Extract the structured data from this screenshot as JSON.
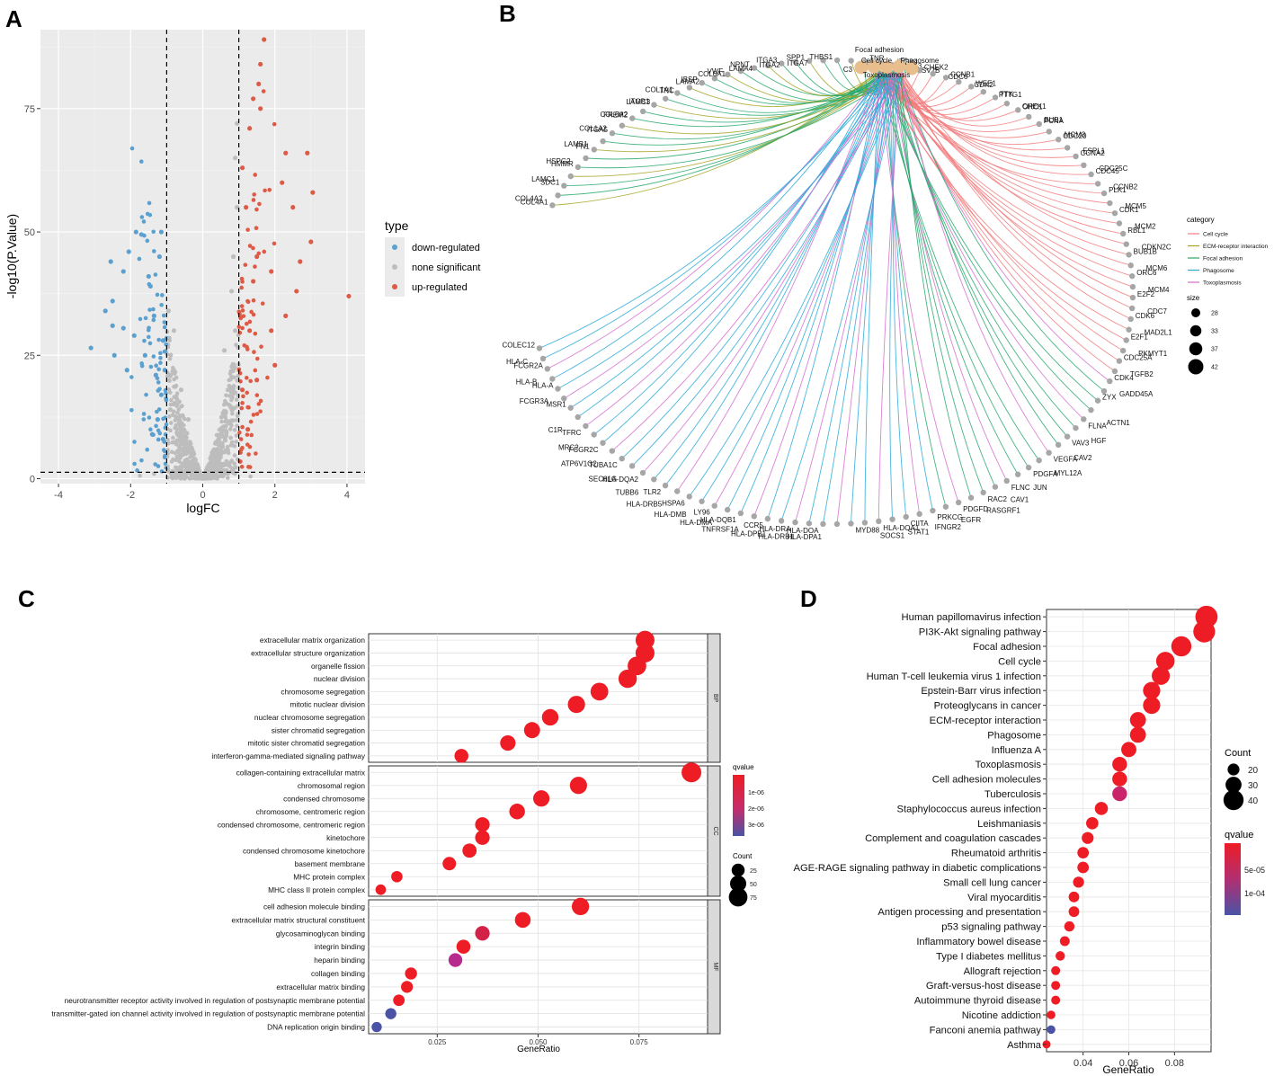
{
  "figure": {
    "panel_labels": [
      "A",
      "B",
      "C",
      "D"
    ],
    "colors": {
      "down": "#5aa0d0",
      "none": "#bdbdbd",
      "up": "#df5a45",
      "panel_bg": "#ebebeb",
      "grid": "#ffffff",
      "strip": "#d9d9d9",
      "qhigh": "#ee1c25",
      "qlow": "#4a53a5"
    }
  },
  "chart_data": [
    {
      "panel": "A",
      "type": "scatter",
      "title": "",
      "xlabel": "logFC",
      "ylabel": "-log10(P.Value)",
      "xlim": [
        -4.5,
        4.5
      ],
      "ylim": [
        -1,
        91
      ],
      "xticks": [
        -4,
        -2,
        0,
        2,
        4
      ],
      "yticks": [
        0,
        25,
        50,
        75
      ],
      "vlines": [
        -1,
        1
      ],
      "hline": 1.3,
      "legend": {
        "title": "type",
        "entries": [
          "down-regulated",
          "none significant",
          "up-regulated"
        ]
      },
      "series": [
        {
          "name": "down-regulated",
          "color": "#5aa0d0",
          "points": [
            [
              -3.1,
              26.5
            ],
            [
              -2.7,
              34
            ],
            [
              -2.55,
              44
            ],
            [
              -2.5,
              36
            ],
            [
              -2.5,
              31
            ],
            [
              -2.45,
              25
            ],
            [
              -2.2,
              42
            ],
            [
              -2.2,
              30.5
            ],
            [
              -2.1,
              22
            ],
            [
              -2.05,
              46
            ],
            [
              -1.85,
              50
            ],
            [
              -1.7,
              49.5
            ],
            [
              -1.5,
              41
            ],
            [
              -1.45,
              39
            ],
            [
              -1.2,
              45
            ],
            [
              -1.15,
              50
            ],
            [
              -1.1,
              28
            ],
            [
              -1.15,
              17
            ],
            [
              -1.3,
              21
            ],
            [
              -1.6,
              25
            ],
            [
              -1.9,
              29
            ],
            [
              -1.35,
              33
            ],
            [
              -1.25,
              12
            ],
            [
              -1.1,
              8
            ],
            [
              -1.4,
              9
            ],
            [
              -1.05,
              22
            ]
          ]
        },
        {
          "name": "none significant",
          "color": "#bdbdbd",
          "points": [
            [
              -0.9,
              14
            ],
            [
              -0.7,
              9
            ],
            [
              -0.5,
              6
            ],
            [
              -0.3,
              3
            ],
            [
              -0.1,
              1
            ],
            [
              0.1,
              1.5
            ],
            [
              0.3,
              4
            ],
            [
              0.5,
              9
            ],
            [
              0.7,
              18
            ],
            [
              0.9,
              30
            ],
            [
              0.95,
              55
            ],
            [
              0.85,
              45
            ],
            [
              0.6,
              26
            ],
            [
              0.95,
              72
            ],
            [
              0.9,
              65
            ],
            [
              0.8,
              38
            ],
            [
              -0.8,
              30
            ],
            [
              -0.95,
              34
            ],
            [
              -0.6,
              18
            ],
            [
              -0.4,
              12
            ]
          ]
        },
        {
          "name": "up-regulated",
          "color": "#df5a45",
          "points": [
            [
              1.7,
              89
            ],
            [
              1.6,
              84
            ],
            [
              1.55,
              80
            ],
            [
              1.4,
              77
            ],
            [
              1.6,
              75
            ],
            [
              1.3,
              71
            ],
            [
              2.3,
              66
            ],
            [
              2.9,
              66
            ],
            [
              3.05,
              58
            ],
            [
              2.5,
              55
            ],
            [
              3.0,
              48
            ],
            [
              2.2,
              60
            ],
            [
              2.7,
              44
            ],
            [
              4.05,
              37
            ],
            [
              1.9,
              42
            ],
            [
              2.6,
              38
            ],
            [
              2.3,
              33
            ],
            [
              1.9,
              30
            ],
            [
              2.0,
              23
            ],
            [
              1.4,
              40
            ],
            [
              1.2,
              55
            ],
            [
              1.1,
              63
            ],
            [
              1.5,
              45
            ],
            [
              1.3,
              30
            ],
            [
              1.1,
              18
            ],
            [
              1.5,
              20
            ],
            [
              1.25,
              10
            ]
          ]
        }
      ]
    },
    {
      "panel": "B",
      "type": "network",
      "title": "",
      "categories": [
        {
          "name": "Cell cycle",
          "color": "#f27b7c"
        },
        {
          "name": "ECM-receptor interaction",
          "color": "#a3a425"
        },
        {
          "name": "Focal adhesion",
          "color": "#26a86c"
        },
        {
          "name": "Phagosome",
          "color": "#28a9d8"
        },
        {
          "name": "Toxoplasmosis",
          "color": "#d56bcf"
        }
      ],
      "legend_title": "category",
      "size_title": "size",
      "size_legend": [
        28,
        33,
        37,
        42
      ],
      "term_nodes": [
        "Focal adhesion",
        "Cell cycle",
        "Phagosome",
        "Toxoplasmosis",
        "C3"
      ],
      "gene_labels": [
        "COL4A1",
        "COL4A2",
        "SDC1",
        "LAMC1",
        "HMMR",
        "HSPG2",
        "FN1",
        "LAMB1",
        "ITGA5",
        "COL1A2",
        "FREM2",
        "COL6A2",
        "ITGB1",
        "LAMC3",
        "COL1A1",
        "TNC",
        "IBSP",
        "LAMA2",
        "VWF",
        "COL6A1",
        "NPNT",
        "LAMA4",
        "ITGA3",
        "ITGA2",
        "SPP1",
        "ITGA7",
        "THBS1",
        "CD44",
        "TNR",
        "COL9A3",
        "ITGB4",
        "SV2B",
        "CHEK2",
        "CDC6",
        "CCNB1",
        "CDK2",
        "WEE1",
        "PTTG1",
        "TTK",
        "CHEK1",
        "ORC1",
        "BUB1",
        "PCNA",
        "MCM3",
        "CDC20",
        "ESPL1",
        "CCNA2",
        "CDC25C",
        "CDC45",
        "CCNB2",
        "PLK1",
        "MCM5",
        "CDK1",
        "MCM2",
        "RBL1",
        "CDKN2C",
        "BUB1B",
        "MCM6",
        "ORC6",
        "MCM4",
        "E2F2",
        "CDC7",
        "CDK6",
        "MAD2L1",
        "E2F1",
        "PKMYT1",
        "CDC25A",
        "TGFB2",
        "CDK4",
        "GADD45A",
        "ZYX",
        "ACTN1",
        "FLNA",
        "HGF",
        "VAV3",
        "CAV2",
        "VEGFA",
        "MYL12A",
        "PDGFA",
        "JUN",
        "FLNC",
        "CAV1",
        "RAC2",
        "RASGRF1",
        "PDGFD",
        "EGFR",
        "PRKCG",
        "IFNGR2",
        "CIITA",
        "STAT1",
        "HLA-DOA1",
        "SOCS1",
        "MYD88",
        "HLA-DPA1",
        "HLA-DOA",
        "HLA-DRB1",
        "HLA-DRA",
        "HLA-DPB1",
        "CCR5",
        "TNFRSF1A",
        "HLA-DQB1",
        "HLA-DMA",
        "LY96",
        "HLA-DMB",
        "HSPA6",
        "HLA-DRB5",
        "TLR2",
        "TUBB6",
        "HLA-DQA2",
        "SEC61G",
        "TUBA1C",
        "ATP6V1G2",
        "FCGR2C",
        "MRC2",
        "TFRC",
        "C1R",
        "MSR1",
        "FCGR3A",
        "HLA-A",
        "HLA-B",
        "FCGR2A",
        "HLA-C",
        "COLEC12"
      ]
    },
    {
      "panel": "C",
      "type": "dotplot",
      "xlabel": "GeneRatio",
      "xlim": [
        0.008,
        0.092
      ],
      "xticks": [
        "0.025",
        "0.050",
        "0.075"
      ],
      "facets": [
        {
          "name": "BP",
          "terms": [
            {
              "term": "extracellular matrix organization",
              "ratio": 0.0765,
              "count": 78,
              "q": 2e-07
            },
            {
              "term": "extracellular structure organization",
              "ratio": 0.0765,
              "count": 78,
              "q": 2e-07
            },
            {
              "term": "organelle fission",
              "ratio": 0.0745,
              "count": 75,
              "q": 2e-07
            },
            {
              "term": "nuclear division",
              "ratio": 0.0722,
              "count": 72,
              "q": 2e-07
            },
            {
              "term": "chromosome segregation",
              "ratio": 0.0652,
              "count": 65,
              "q": 2e-07
            },
            {
              "term": "mitotic nuclear division",
              "ratio": 0.0595,
              "count": 60,
              "q": 2e-07
            },
            {
              "term": "nuclear chromosome segregation",
              "ratio": 0.053,
              "count": 53,
              "q": 2e-07
            },
            {
              "term": "sister chromatid segregation",
              "ratio": 0.0485,
              "count": 49,
              "q": 2e-07
            },
            {
              "term": "mitotic sister chromatid segregation",
              "ratio": 0.0425,
              "count": 43,
              "q": 2e-07
            },
            {
              "term": "interferon-gamma-mediated signaling pathway",
              "ratio": 0.031,
              "count": 31,
              "q": 3e-07
            }
          ]
        },
        {
          "name": "CC",
          "terms": [
            {
              "term": "collagen-containing extracellular matrix",
              "ratio": 0.088,
              "count": 88,
              "q": 2e-07
            },
            {
              "term": "chromosomal region",
              "ratio": 0.06,
              "count": 60,
              "q": 2e-07
            },
            {
              "term": "condensed chromosome",
              "ratio": 0.0508,
              "count": 51,
              "q": 2e-07
            },
            {
              "term": "chromosome, centromeric region",
              "ratio": 0.0448,
              "count": 45,
              "q": 2e-07
            },
            {
              "term": "condensed chromosome, centromeric region",
              "ratio": 0.0362,
              "count": 36,
              "q": 2e-07
            },
            {
              "term": "kinetochore",
              "ratio": 0.0362,
              "count": 36,
              "q": 2e-07
            },
            {
              "term": "condensed chromosome kinetochore",
              "ratio": 0.033,
              "count": 33,
              "q": 2e-07
            },
            {
              "term": "basement membrane",
              "ratio": 0.028,
              "count": 28,
              "q": 2e-07
            },
            {
              "term": "MHC protein complex",
              "ratio": 0.015,
              "count": 15,
              "q": 2e-07
            },
            {
              "term": "MHC class II protein complex",
              "ratio": 0.011,
              "count": 11,
              "q": 2e-07
            }
          ]
        },
        {
          "name": "MF",
          "terms": [
            {
              "term": "cell adhesion molecule binding",
              "ratio": 0.0605,
              "count": 61,
              "q": 2e-07
            },
            {
              "term": "extracellular matrix structural constituent",
              "ratio": 0.0462,
              "count": 46,
              "q": 2e-07
            },
            {
              "term": "glycosaminoglycan binding",
              "ratio": 0.0362,
              "count": 36,
              "q": 1.2e-06
            },
            {
              "term": "integrin binding",
              "ratio": 0.0315,
              "count": 32,
              "q": 3e-07
            },
            {
              "term": "heparin binding",
              "ratio": 0.0295,
              "count": 30,
              "q": 2.2e-06
            },
            {
              "term": "collagen binding",
              "ratio": 0.0185,
              "count": 19,
              "q": 3e-07
            },
            {
              "term": "extracellular matrix binding",
              "ratio": 0.0175,
              "count": 18,
              "q": 3e-07
            },
            {
              "term": "neurotransmitter receptor activity involved in regulation of postsynaptic membrane potential",
              "ratio": 0.0155,
              "count": 16,
              "q": 3e-07
            },
            {
              "term": "transmitter-gated ion channel activity involved in regulation of postsynaptic membrane potential",
              "ratio": 0.0135,
              "count": 14,
              "q": 3.3e-06
            },
            {
              "term": "DNA replication origin binding",
              "ratio": 0.01,
              "count": 10,
              "q": 3.4e-06
            }
          ]
        }
      ],
      "legend": {
        "color_title": "qvalue",
        "color_ticks": [
          "1e-06",
          "2e-06",
          "3e-06"
        ],
        "size_title": "Count",
        "size_ticks": [
          25,
          50,
          75
        ]
      }
    },
    {
      "panel": "D",
      "type": "dotplot",
      "xlabel": "GeneRatio",
      "xlim": [
        0.024,
        0.096
      ],
      "xticks": [
        "0.04",
        "0.06",
        "0.08"
      ],
      "terms": [
        {
          "term": "Human papillomavirus infection",
          "ratio": 0.094,
          "count": 45,
          "q": 2e-06
        },
        {
          "term": "PI3K-Akt signaling pathway",
          "ratio": 0.093,
          "count": 44,
          "q": 2e-06
        },
        {
          "term": "Focal adhesion",
          "ratio": 0.083,
          "count": 40,
          "q": 2e-06
        },
        {
          "term": "Cell cycle",
          "ratio": 0.076,
          "count": 36,
          "q": 2e-06
        },
        {
          "term": "Human T-cell leukemia virus 1 infection",
          "ratio": 0.074,
          "count": 35,
          "q": 2e-06
        },
        {
          "term": "Epstein-Barr virus infection",
          "ratio": 0.07,
          "count": 33,
          "q": 2e-06
        },
        {
          "term": "Proteoglycans in cancer",
          "ratio": 0.07,
          "count": 33,
          "q": 2e-06
        },
        {
          "term": "ECM-receptor interaction",
          "ratio": 0.064,
          "count": 30,
          "q": 2e-06
        },
        {
          "term": "Phagosome",
          "ratio": 0.064,
          "count": 30,
          "q": 2e-06
        },
        {
          "term": "Influenza A",
          "ratio": 0.06,
          "count": 28,
          "q": 2e-06
        },
        {
          "term": "Toxoplasmosis",
          "ratio": 0.056,
          "count": 27,
          "q": 2e-06
        },
        {
          "term": "Cell adhesion molecules",
          "ratio": 0.056,
          "count": 27,
          "q": 2e-06
        },
        {
          "term": "Tuberculosis",
          "ratio": 0.056,
          "count": 27,
          "q": 5.2e-05
        },
        {
          "term": "Staphylococcus aureus infection",
          "ratio": 0.048,
          "count": 23,
          "q": 2e-06
        },
        {
          "term": "Leishmaniasis",
          "ratio": 0.044,
          "count": 21,
          "q": 2e-06
        },
        {
          "term": "Complement and coagulation cascades",
          "ratio": 0.042,
          "count": 20,
          "q": 2e-06
        },
        {
          "term": "Rheumatoid arthritis",
          "ratio": 0.04,
          "count": 19,
          "q": 2e-06
        },
        {
          "term": "AGE-RAGE signaling pathway in diabetic complications",
          "ratio": 0.04,
          "count": 19,
          "q": 2e-06
        },
        {
          "term": "Small cell lung cancer",
          "ratio": 0.038,
          "count": 18,
          "q": 2e-06
        },
        {
          "term": "Viral myocarditis",
          "ratio": 0.036,
          "count": 17,
          "q": 2e-06
        },
        {
          "term": "Antigen processing and presentation",
          "ratio": 0.036,
          "count": 17,
          "q": 2e-06
        },
        {
          "term": "p53 signaling pathway",
          "ratio": 0.034,
          "count": 16,
          "q": 2e-06
        },
        {
          "term": "Inflammatory bowel disease",
          "ratio": 0.032,
          "count": 15,
          "q": 2e-06
        },
        {
          "term": "Type I diabetes mellitus",
          "ratio": 0.03,
          "count": 14,
          "q": 2e-06
        },
        {
          "term": "Allograft rejection",
          "ratio": 0.028,
          "count": 13,
          "q": 2e-06
        },
        {
          "term": "Graft-versus-host disease",
          "ratio": 0.028,
          "count": 13,
          "q": 2e-06
        },
        {
          "term": "Autoimmune thyroid disease",
          "ratio": 0.028,
          "count": 13,
          "q": 2e-06
        },
        {
          "term": "Nicotine addiction",
          "ratio": 0.026,
          "count": 12,
          "q": 2e-06
        },
        {
          "term": "Fanconi anemia pathway",
          "ratio": 0.026,
          "count": 12,
          "q": 0.00015
        },
        {
          "term": "Asthma",
          "ratio": 0.024,
          "count": 11,
          "q": 2e-06
        }
      ],
      "legend": {
        "size_title": "Count",
        "size_ticks": [
          20,
          30,
          40
        ],
        "color_title": "qvalue",
        "color_ticks": [
          "5e-05",
          "1e-04"
        ]
      }
    }
  ]
}
